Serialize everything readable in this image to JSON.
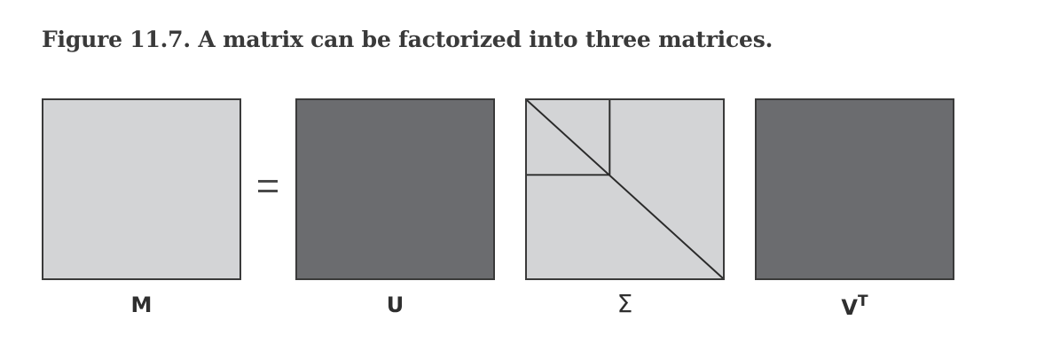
{
  "caption": "Figure 11.7. A matrix can be factorized into three matrices.",
  "colors": {
    "light_fill": "#d3d4d6",
    "dark_fill": "#6b6c6f",
    "border": "#3a3a3a"
  },
  "equation": {
    "equals_sign": "=",
    "matrices": [
      {
        "id": "M",
        "label": "M",
        "fill": "light"
      },
      {
        "id": "U",
        "label": "U",
        "fill": "dark"
      },
      {
        "id": "Sigma",
        "label": "Σ",
        "fill": "light",
        "pattern": "diagonal-with-upper-left-block"
      },
      {
        "id": "VT",
        "label": "V",
        "superscript": "T",
        "fill": "dark"
      }
    ]
  }
}
